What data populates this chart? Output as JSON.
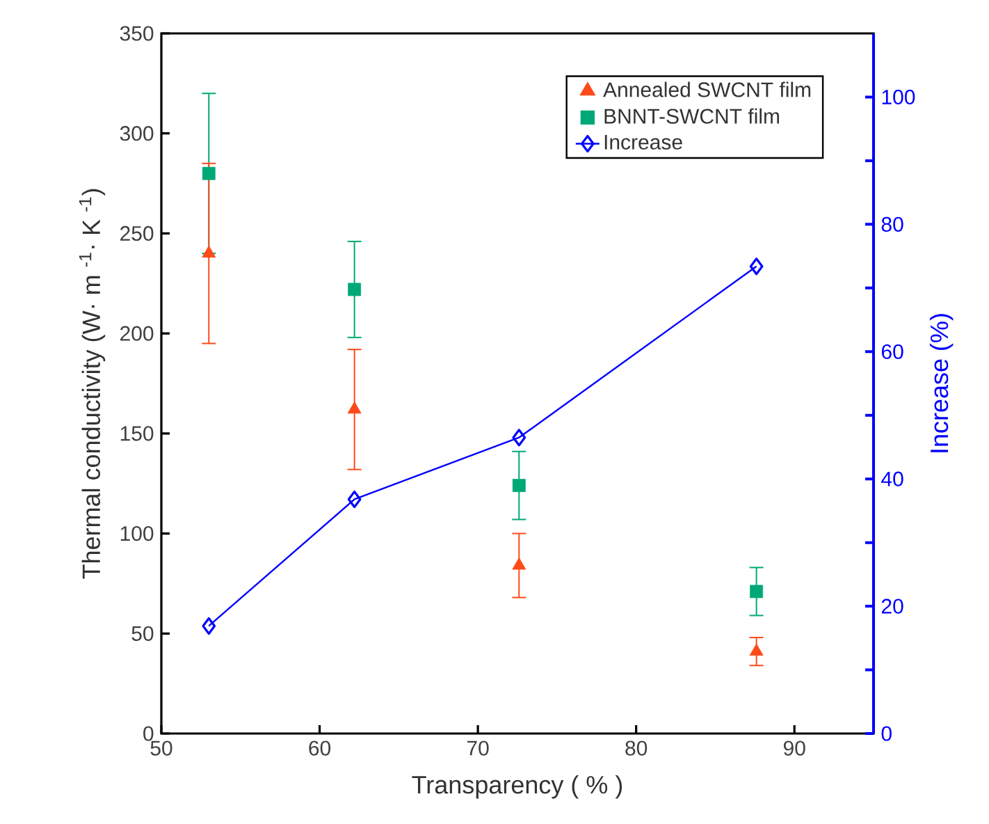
{
  "chart_data": {
    "type": "scatter",
    "xlabel": "Transparency ( % )",
    "ylabel": "Thermal conductivity (W· m $^{-1}$· K $^{-1}$)",
    "y2label": "Increase (%)",
    "x": [
      53,
      62.2,
      72.6,
      87.6
    ],
    "series": [
      {
        "name": "Annealed SWCNT film",
        "marker": "triangle",
        "color": "#ff4a1a",
        "values": [
          240,
          162,
          84,
          41
        ],
        "errors": [
          45,
          30,
          16,
          7
        ]
      },
      {
        "name": "BNNT-SWCNT film",
        "marker": "square",
        "color": "#00a878",
        "values": [
          280,
          222,
          124,
          71
        ],
        "errors": [
          40,
          24,
          17,
          12
        ]
      },
      {
        "name": "Increase",
        "type": "line",
        "marker": "diamond",
        "line_style": "solid",
        "axis": "y2",
        "color": "#0000ff",
        "values": [
          16.9,
          36.8,
          46.5,
          73.4
        ]
      }
    ],
    "xlim": [
      50,
      95
    ],
    "xticks": [
      50,
      60,
      70,
      80,
      90
    ],
    "ylim": [
      0,
      350
    ],
    "yticks": [
      0,
      50,
      100,
      150,
      200,
      250,
      300,
      350
    ],
    "y2lim": [
      0,
      110
    ],
    "y2ticks": [
      0,
      {
        "value": 10,
        "label": null
      },
      20,
      {
        "value": 30,
        "label": null
      },
      40,
      {
        "value": 50,
        "label": null
      },
      60,
      {
        "value": 70,
        "label": null
      },
      80,
      {
        "value": 90,
        "label": null
      },
      100
    ],
    "legend": "top right",
    "grid": false
  }
}
